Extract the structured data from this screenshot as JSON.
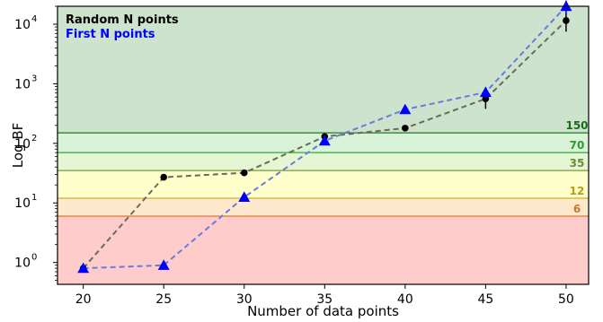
{
  "chart_data": {
    "type": "line",
    "title": "",
    "xlabel": "Number of data points",
    "ylabel": "Log BF",
    "yscale": "log",
    "xlim": [
      18.4,
      51.4
    ],
    "ylim": [
      0.43,
      20000
    ],
    "x_ticks": [
      20,
      25,
      30,
      35,
      40,
      45,
      50
    ],
    "x_tick_labels": [
      "20",
      "25",
      "30",
      "35",
      "40",
      "45",
      "50"
    ],
    "y_ticks": [
      1,
      10,
      100,
      1000,
      10000
    ],
    "y_tick_labels": [
      {
        "base": "10",
        "exp": "0"
      },
      {
        "base": "10",
        "exp": "1"
      },
      {
        "base": "10",
        "exp": "2"
      },
      {
        "base": "10",
        "exp": "3"
      },
      {
        "base": "10",
        "exp": "4"
      }
    ],
    "legend": {
      "placement": "top-left",
      "entries": [
        {
          "label": "Random N points",
          "color": "#000000"
        },
        {
          "label": "First N points",
          "color": "#0000ff"
        }
      ]
    },
    "thresholds": [
      {
        "value": 150,
        "label": "150",
        "line_color": "#1e7a1e",
        "text_color": "#1a6b1a"
      },
      {
        "value": 70,
        "label": "70",
        "line_color": "#3aa63a",
        "text_color": "#2e9a2e"
      },
      {
        "value": 35,
        "label": "35",
        "line_color": "#7a9a3a",
        "text_color": "#6b8a3a"
      },
      {
        "value": 12,
        "label": "12",
        "line_color": "#c8b030",
        "text_color": "#b0a020"
      },
      {
        "value": 6,
        "label": "6",
        "line_color": "#d97a30",
        "text_color": "#c8782a"
      }
    ],
    "bands": [
      {
        "from": 150,
        "to": 20000,
        "color": "#cde3cd"
      },
      {
        "from": 70,
        "to": 150,
        "color": "#d8f3d8"
      },
      {
        "from": 35,
        "to": 70,
        "color": "#e4f6d4"
      },
      {
        "from": 12,
        "to": 35,
        "color": "#ffffcc"
      },
      {
        "from": 6,
        "to": 12,
        "color": "#ffe9cc"
      },
      {
        "from": 0.43,
        "to": 6,
        "color": "#ffcccc"
      }
    ],
    "series": [
      {
        "name": "Random N points",
        "color": "#000000",
        "line_color": "#6b6b55",
        "marker": "circle",
        "x": [
          20,
          25,
          30,
          35,
          40,
          45,
          50
        ],
        "y": [
          0.8,
          27,
          32,
          130,
          180,
          560,
          11500
        ],
        "err_low": [
          0.1,
          2,
          2,
          15,
          15,
          180,
          4000
        ],
        "err_high": [
          0.1,
          2,
          2,
          15,
          15,
          180,
          4000
        ]
      },
      {
        "name": "First N points",
        "color": "#0000ff",
        "line_color": "#6b7bd9",
        "marker": "triangle",
        "x": [
          20,
          25,
          30,
          35,
          40,
          45,
          50
        ],
        "y": [
          0.8,
          0.9,
          12.5,
          110,
          370,
          720,
          20000
        ],
        "err_low": [
          0,
          0,
          0,
          0,
          40,
          150,
          5000
        ],
        "err_high": [
          0,
          0,
          0,
          0,
          40,
          150,
          5000
        ]
      }
    ]
  }
}
